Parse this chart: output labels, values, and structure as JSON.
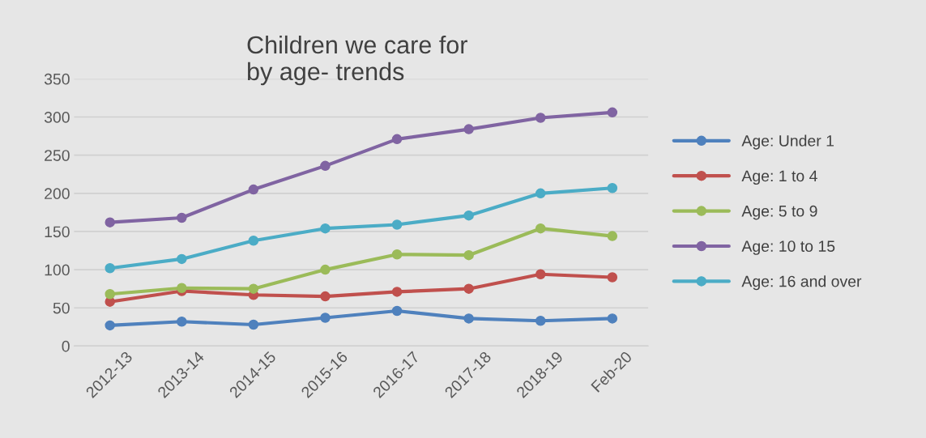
{
  "chart_data": {
    "type": "line",
    "title": "Children we care for\nby age- trends",
    "categories": [
      "2012-13",
      "2013-14",
      "2014-15",
      "2015-16",
      "2016-17",
      "2017-18",
      "2018-19",
      "Feb-20"
    ],
    "series": [
      {
        "name": "Age: Under 1",
        "color": "#4f81bd",
        "values": [
          27,
          32,
          28,
          37,
          46,
          36,
          33,
          36
        ]
      },
      {
        "name": "Age: 1 to 4",
        "color": "#c0504d",
        "values": [
          58,
          72,
          67,
          65,
          71,
          75,
          94,
          90
        ]
      },
      {
        "name": "Age: 5 to 9",
        "color": "#9bbb59",
        "values": [
          68,
          76,
          75,
          100,
          120,
          119,
          154,
          144
        ]
      },
      {
        "name": "Age: 10 to 15",
        "color": "#8064a2",
        "values": [
          162,
          168,
          205,
          236,
          271,
          284,
          299,
          306
        ]
      },
      {
        "name": "Age: 16 and over",
        "color": "#4bacc6",
        "values": [
          102,
          114,
          138,
          154,
          159,
          171,
          200,
          207
        ]
      }
    ],
    "ylim": [
      0,
      350
    ],
    "yticks": [
      0,
      50,
      100,
      150,
      200,
      250,
      300,
      350
    ],
    "grid": "y",
    "legend": "right",
    "marker": "circle",
    "line_style": "solid"
  }
}
